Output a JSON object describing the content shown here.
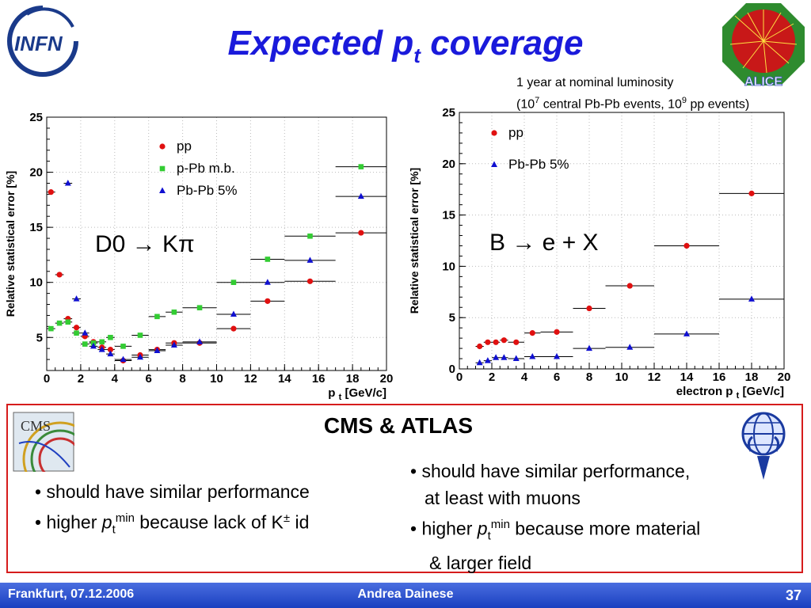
{
  "header": {
    "title_main": "Expected p",
    "title_sub": "t",
    "title_tail": " coverage"
  },
  "logos": {
    "infn": "INFN",
    "alice": "ALICE",
    "cms": "CMS"
  },
  "note": {
    "line1": "1 year at nominal luminosity",
    "line2_a": "(10",
    "line2_sup1": "7",
    "line2_b": " central Pb-Pb events, 10",
    "line2_sup2": "9",
    "line2_c": " pp events)"
  },
  "chart_data": [
    {
      "type": "scatter",
      "annotation": "D0 → Kπ",
      "xlabel": "p t [GeV/c]",
      "ylabel": "Relative statistical error [%]",
      "xlim": [
        0,
        20
      ],
      "ylim": [
        2,
        25
      ],
      "xticks": [
        0,
        2,
        4,
        6,
        8,
        10,
        12,
        14,
        16,
        18,
        20
      ],
      "yticks": [
        5,
        10,
        15,
        20,
        25
      ],
      "legend_position": "top-right",
      "colors": {
        "pp": "#e01010",
        "p-Pb m.b.": "#33cc33",
        "Pb-Pb 5%": "#1010d0"
      },
      "series": [
        {
          "name": "pp",
          "marker": "circle",
          "points": [
            [
              0.25,
              0.25,
              18.2
            ],
            [
              0.75,
              0.25,
              10.7
            ],
            [
              1.25,
              0.25,
              6.7
            ],
            [
              1.75,
              0.25,
              5.9
            ],
            [
              2.25,
              0.25,
              5.1
            ],
            [
              2.75,
              0.25,
              4.6
            ],
            [
              3.25,
              0.25,
              4.1
            ],
            [
              3.75,
              0.25,
              3.9
            ],
            [
              4.5,
              0.5,
              2.9
            ],
            [
              5.5,
              0.5,
              3.4
            ],
            [
              6.5,
              0.5,
              3.9
            ],
            [
              7.5,
              0.5,
              4.5
            ],
            [
              9,
              1,
              4.5
            ],
            [
              11,
              1,
              5.8
            ],
            [
              13,
              1,
              8.3
            ],
            [
              15.5,
              1.5,
              10.1
            ],
            [
              18.5,
              1.5,
              14.5
            ]
          ]
        },
        {
          "name": "p-Pb m.b.",
          "marker": "square",
          "points": [
            [
              0.25,
              0.25,
              5.8
            ],
            [
              0.75,
              0.25,
              6.3
            ],
            [
              1.25,
              0.25,
              6.4
            ],
            [
              1.75,
              0.25,
              5.4
            ],
            [
              2.25,
              0.25,
              4.4
            ],
            [
              2.75,
              0.25,
              4.5
            ],
            [
              3.25,
              0.25,
              4.6
            ],
            [
              3.75,
              0.25,
              5.0
            ],
            [
              4.5,
              0.5,
              4.2
            ],
            [
              5.5,
              0.5,
              5.2
            ],
            [
              6.5,
              0.5,
              6.9
            ],
            [
              7.5,
              0.5,
              7.3
            ],
            [
              9,
              1,
              7.7
            ],
            [
              11,
              1,
              10.0
            ],
            [
              13,
              1,
              12.1
            ],
            [
              15.5,
              1.5,
              14.2
            ],
            [
              18.5,
              1.5,
              20.5
            ]
          ]
        },
        {
          "name": "Pb-Pb 5%",
          "marker": "triangle",
          "points": [
            [
              1.25,
              0.25,
              19.0
            ],
            [
              1.75,
              0.25,
              8.5
            ],
            [
              2.25,
              0.25,
              5.4
            ],
            [
              2.75,
              0.25,
              4.2
            ],
            [
              3.25,
              0.25,
              3.9
            ],
            [
              3.75,
              0.25,
              3.5
            ],
            [
              4.5,
              0.5,
              3.0
            ],
            [
              5.5,
              0.5,
              3.2
            ],
            [
              6.5,
              0.5,
              3.8
            ],
            [
              7.5,
              0.5,
              4.3
            ],
            [
              9,
              1,
              4.6
            ],
            [
              11,
              1,
              7.1
            ],
            [
              13,
              1,
              10.0
            ],
            [
              15.5,
              1.5,
              12.0
            ],
            [
              18.5,
              1.5,
              17.8
            ]
          ]
        }
      ]
    },
    {
      "type": "scatter",
      "annotation": "B → e + X",
      "xlabel": "electron p t [GeV/c]",
      "ylabel": "Relative statistical error [%]",
      "xlim": [
        0,
        20
      ],
      "ylim": [
        0,
        25
      ],
      "xticks": [
        0,
        2,
        4,
        6,
        8,
        10,
        12,
        14,
        16,
        18,
        20
      ],
      "yticks": [
        0,
        5,
        10,
        15,
        20,
        25
      ],
      "legend_position": "top-left",
      "colors": {
        "pp": "#e01010",
        "Pb-Pb 5%": "#1010d0"
      },
      "series": [
        {
          "name": "pp",
          "marker": "circle",
          "points": [
            [
              1.25,
              0.25,
              2.2
            ],
            [
              1.75,
              0.25,
              2.6
            ],
            [
              2.25,
              0.25,
              2.6
            ],
            [
              2.75,
              0.25,
              2.8
            ],
            [
              3.5,
              0.5,
              2.6
            ],
            [
              4.5,
              0.5,
              3.5
            ],
            [
              6,
              1,
              3.6
            ],
            [
              8,
              1,
              5.9
            ],
            [
              10.5,
              1.5,
              8.1
            ],
            [
              14,
              2,
              12.0
            ],
            [
              18,
              2,
              17.1
            ]
          ]
        },
        {
          "name": "Pb-Pb 5%",
          "marker": "triangle",
          "points": [
            [
              1.25,
              0.25,
              0.6
            ],
            [
              1.75,
              0.25,
              0.8
            ],
            [
              2.25,
              0.25,
              1.1
            ],
            [
              2.75,
              0.25,
              1.1
            ],
            [
              3.5,
              0.5,
              1.0
            ],
            [
              4.5,
              0.5,
              1.2
            ],
            [
              6,
              1,
              1.2
            ],
            [
              8,
              1,
              2.0
            ],
            [
              10.5,
              1.5,
              2.1
            ],
            [
              14,
              2,
              3.4
            ],
            [
              18,
              2,
              6.8
            ]
          ]
        }
      ]
    }
  ],
  "panel": {
    "title": "CMS & ATLAS",
    "left": {
      "b1": "• should have similar performance",
      "b2_pre": "• higher ",
      "b2_p": "p",
      "b2_sub": "t",
      "b2_sup": "min",
      "b2_post": " because lack of K",
      "b2_pm": "±",
      "b2_end": " id"
    },
    "right": {
      "b1": "• should have similar performance,",
      "b1_cont": "at  least with muons",
      "b2_pre": "• higher ",
      "b2_p": "p",
      "b2_sub": "t",
      "b2_sup": "min",
      "b2_post": " because more material",
      "b2_cont": "& larger field"
    }
  },
  "footer": {
    "left": "Frankfurt, 07.12.2006",
    "center": "Andrea Dainese",
    "right": "37"
  }
}
